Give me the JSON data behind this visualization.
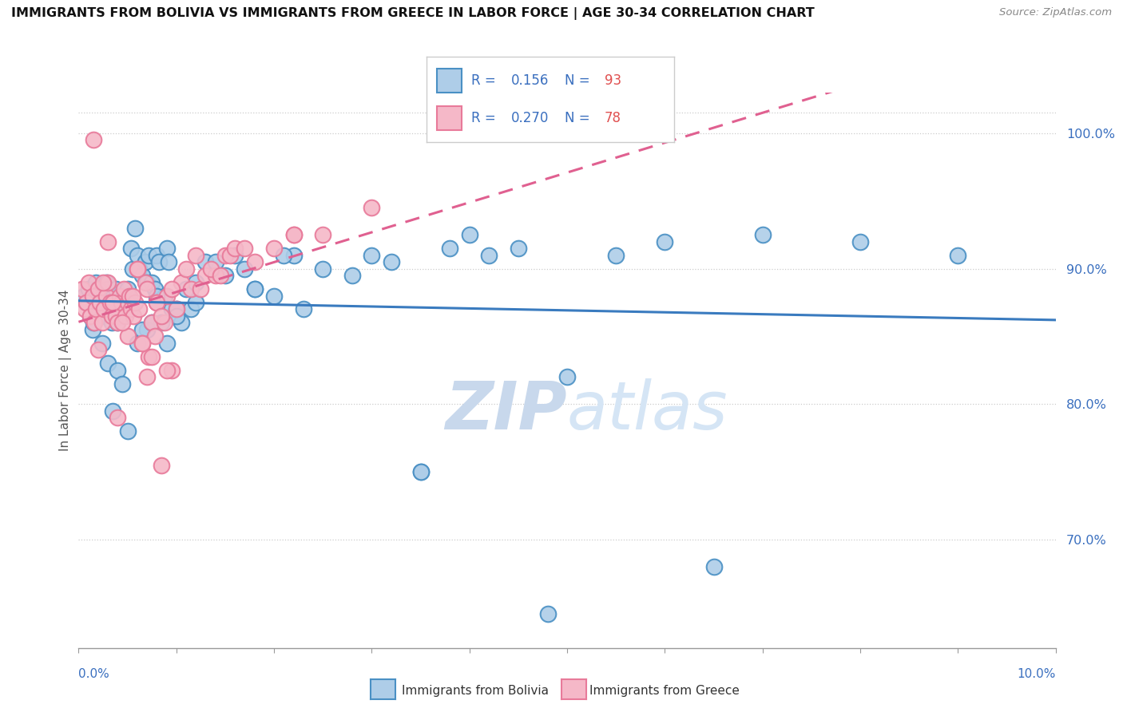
{
  "title": "IMMIGRANTS FROM BOLIVIA VS IMMIGRANTS FROM GREECE IN LABOR FORCE | AGE 30-34 CORRELATION CHART",
  "source": "Source: ZipAtlas.com",
  "ylabel": "In Labor Force | Age 30-34",
  "legend_r_bolivia": "R = 0.156",
  "legend_n_bolivia": "N = 93",
  "legend_r_greece": "R = 0.270",
  "legend_n_greece": "N = 78",
  "legend_label_bolivia": "Immigrants from Bolivia",
  "legend_label_greece": "Immigrants from Greece",
  "xlim": [
    0.0,
    10.0
  ],
  "ylim": [
    62.0,
    103.0
  ],
  "yticks": [
    70.0,
    80.0,
    90.0,
    100.0
  ],
  "ytick_labels": [
    "70.0%",
    "80.0%",
    "90.0%",
    "100.0%"
  ],
  "color_blue_fill": "#aecde8",
  "color_blue_edge": "#4a90c4",
  "color_blue_line": "#3a7bbf",
  "color_pink_fill": "#f5b8c8",
  "color_pink_edge": "#e87a9a",
  "color_pink_line": "#e06090",
  "color_text_blue": "#3a6fbf",
  "color_text_coral": "#e05050",
  "color_grid": "#cccccc",
  "color_watermark": "#d8e4f0",
  "bolivia_x": [
    0.05,
    0.08,
    0.1,
    0.12,
    0.14,
    0.15,
    0.16,
    0.18,
    0.2,
    0.22,
    0.24,
    0.25,
    0.26,
    0.28,
    0.3,
    0.32,
    0.34,
    0.35,
    0.36,
    0.38,
    0.4,
    0.42,
    0.44,
    0.45,
    0.46,
    0.48,
    0.5,
    0.52,
    0.54,
    0.55,
    0.58,
    0.6,
    0.62,
    0.65,
    0.68,
    0.7,
    0.72,
    0.75,
    0.78,
    0.8,
    0.82,
    0.85,
    0.88,
    0.9,
    0.92,
    0.95,
    1.0,
    1.05,
    1.1,
    1.15,
    1.2,
    1.3,
    1.4,
    1.5,
    1.6,
    1.7,
    1.8,
    2.0,
    2.2,
    2.5,
    2.8,
    3.0,
    3.2,
    3.5,
    3.8,
    4.0,
    4.2,
    4.5,
    4.8,
    5.0,
    5.5,
    6.0,
    6.5,
    7.0,
    8.0,
    9.0,
    0.3,
    0.4,
    0.5,
    0.6,
    0.7,
    0.8,
    0.9,
    1.0,
    1.2,
    1.8,
    2.3,
    3.5,
    2.1,
    0.35,
    0.45,
    0.65,
    0.75
  ],
  "bolivia_y": [
    88.0,
    87.5,
    88.5,
    86.5,
    85.5,
    86.0,
    88.0,
    89.0,
    87.0,
    88.5,
    84.5,
    88.0,
    86.5,
    89.0,
    88.5,
    87.5,
    86.0,
    87.5,
    88.0,
    88.5,
    86.0,
    86.5,
    87.0,
    86.5,
    88.0,
    87.5,
    88.5,
    87.5,
    91.5,
    90.0,
    93.0,
    91.0,
    90.0,
    89.5,
    90.5,
    89.0,
    91.0,
    89.0,
    88.5,
    91.0,
    90.5,
    86.0,
    88.0,
    91.5,
    90.5,
    87.0,
    87.0,
    86.0,
    88.5,
    87.0,
    89.0,
    90.5,
    90.5,
    89.5,
    91.0,
    90.0,
    88.5,
    88.0,
    91.0,
    90.0,
    89.5,
    91.0,
    90.5,
    75.0,
    91.5,
    92.5,
    91.0,
    91.5,
    64.5,
    82.0,
    91.0,
    92.0,
    68.0,
    92.5,
    92.0,
    91.0,
    83.0,
    82.5,
    78.0,
    84.5,
    85.5,
    88.0,
    84.5,
    86.5,
    87.5,
    88.5,
    87.0,
    75.0,
    91.0,
    79.5,
    81.5,
    85.5,
    86.0
  ],
  "greece_x": [
    0.04,
    0.06,
    0.08,
    0.1,
    0.12,
    0.14,
    0.16,
    0.18,
    0.2,
    0.22,
    0.24,
    0.26,
    0.28,
    0.3,
    0.32,
    0.34,
    0.36,
    0.38,
    0.4,
    0.42,
    0.44,
    0.46,
    0.48,
    0.5,
    0.52,
    0.54,
    0.56,
    0.58,
    0.6,
    0.62,
    0.65,
    0.68,
    0.7,
    0.72,
    0.75,
    0.78,
    0.8,
    0.85,
    0.88,
    0.9,
    0.95,
    1.0,
    1.05,
    1.1,
    1.15,
    1.2,
    1.25,
    1.3,
    1.4,
    1.5,
    1.55,
    1.6,
    1.7,
    1.8,
    2.0,
    2.2,
    2.5,
    3.0,
    0.3,
    0.4,
    0.5,
    0.6,
    0.7,
    0.8,
    0.9,
    0.25,
    0.35,
    0.45,
    0.55,
    0.65,
    0.75,
    0.85,
    0.95,
    1.35,
    1.45,
    2.2,
    0.2,
    0.15
  ],
  "greece_y": [
    88.5,
    87.0,
    87.5,
    89.0,
    86.5,
    88.0,
    86.0,
    87.0,
    88.5,
    87.5,
    86.0,
    87.0,
    88.0,
    89.0,
    87.5,
    86.5,
    87.5,
    86.5,
    86.0,
    88.0,
    87.5,
    88.5,
    86.5,
    87.5,
    88.0,
    87.0,
    86.5,
    87.5,
    90.0,
    87.0,
    84.5,
    89.0,
    88.5,
    83.5,
    86.0,
    85.0,
    87.5,
    75.5,
    86.0,
    88.0,
    82.5,
    87.0,
    89.0,
    90.0,
    88.5,
    91.0,
    88.5,
    89.5,
    89.5,
    91.0,
    91.0,
    91.5,
    91.5,
    90.5,
    91.5,
    92.5,
    92.5,
    94.5,
    92.0,
    79.0,
    85.0,
    90.0,
    82.0,
    87.5,
    82.5,
    89.0,
    87.5,
    86.0,
    88.0,
    84.5,
    83.5,
    86.5,
    88.5,
    90.0,
    89.5,
    92.5,
    84.0,
    99.5
  ],
  "watermark_zip_color": "#c8d8ec",
  "watermark_atlas_color": "#d5e5f5"
}
